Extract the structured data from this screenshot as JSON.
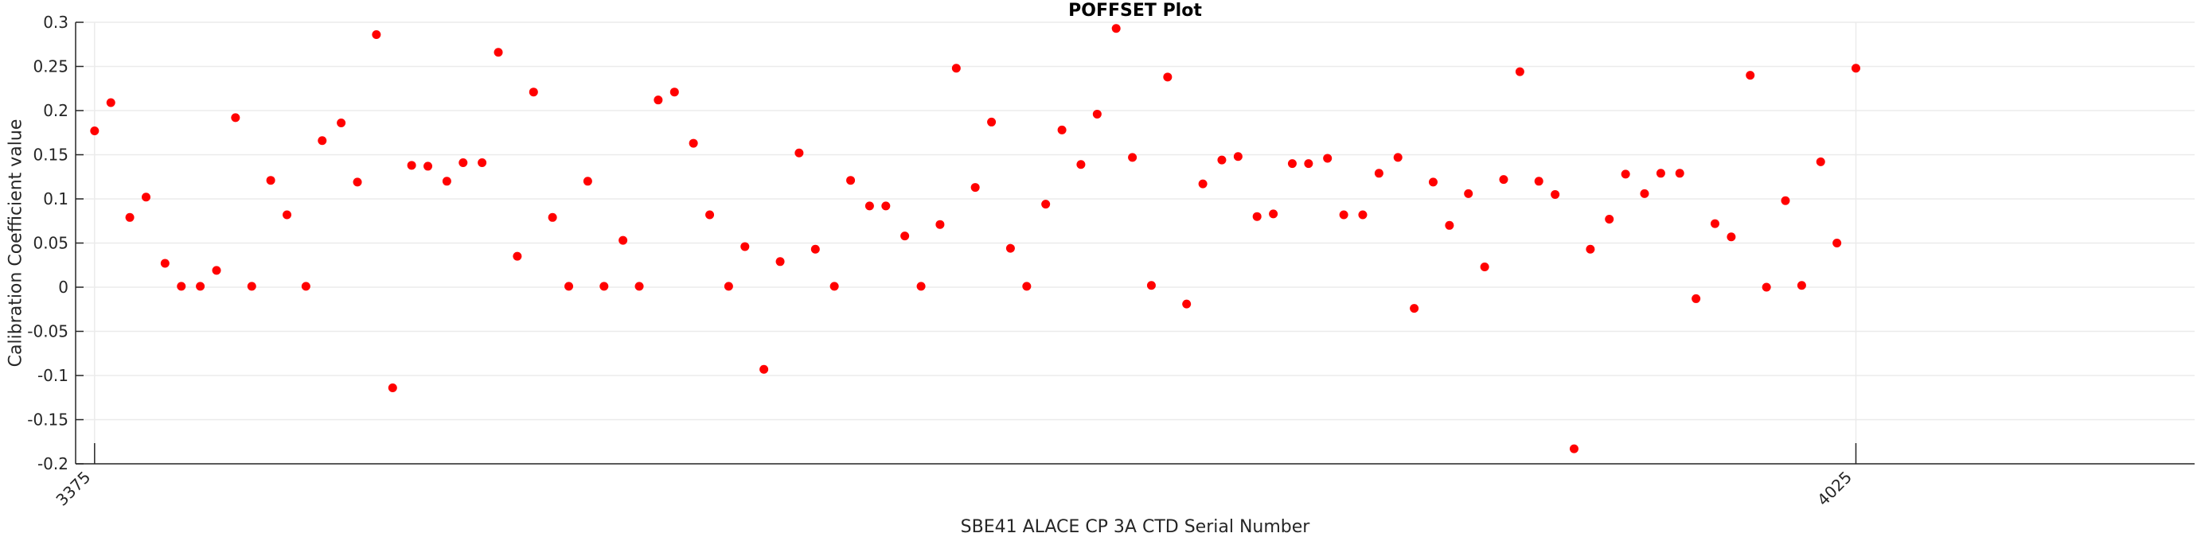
{
  "chart_data": {
    "type": "scatter",
    "title": "POFFSET Plot",
    "xlabel": "SBE41 ALACE CP 3A CTD Serial Number",
    "ylabel": "Calibration Coefficient value",
    "xlim": [
      3368,
      4150
    ],
    "ylim": [
      -0.2,
      0.3
    ],
    "x_ticks": [
      3375,
      4025
    ],
    "x_tick_labels": [
      "3375",
      "4025"
    ],
    "y_ticks": [
      -0.2,
      -0.15,
      -0.1,
      -0.05,
      0,
      0.05,
      0.1,
      0.15,
      0.2,
      0.25,
      0.3
    ],
    "y_tick_labels": [
      "-0.2",
      "-0.15",
      "-0.1",
      "-0.05",
      "0",
      "0.05",
      "0.1",
      "0.15",
      "0.2",
      "0.25",
      "0.3"
    ],
    "grid": true,
    "marker_color": "#ff0000",
    "x": [
      3375,
      3381,
      3388,
      3394,
      3401,
      3407,
      3414,
      3420,
      3427,
      3433,
      3440,
      3446,
      3453,
      3459,
      3466,
      3472,
      3479,
      3485,
      3492,
      3498,
      3505,
      3511,
      3518,
      3524,
      3531,
      3537,
      3544,
      3550,
      3557,
      3563,
      3570,
      3576,
      3583,
      3589,
      3596,
      3602,
      3609,
      3615,
      3622,
      3628,
      3635,
      3641,
      3648,
      3654,
      3661,
      3667,
      3674,
      3680,
      3687,
      3693,
      3700,
      3706,
      3713,
      3719,
      3726,
      3732,
      3739,
      3745,
      3752,
      3758,
      3765,
      3771,
      3778,
      3784,
      3791,
      3797,
      3804,
      3810,
      3817,
      3823,
      3830,
      3836,
      3843,
      3849,
      3856,
      3862,
      3869,
      3875,
      3882,
      3888,
      3895,
      3901,
      3908,
      3914,
      3921,
      3927,
      3934,
      3940,
      3947,
      3953,
      3960,
      3966,
      3973,
      3979,
      3986,
      3992,
      3999,
      4005,
      4012,
      4018,
      4025
    ],
    "y": [
      0.177,
      0.209,
      0.079,
      0.102,
      0.027,
      0.001,
      0.001,
      0.019,
      0.192,
      0.001,
      0.121,
      0.082,
      0.001,
      0.166,
      0.186,
      0.119,
      0.286,
      -0.114,
      0.138,
      0.137,
      0.12,
      0.141,
      0.141,
      0.266,
      0.035,
      0.221,
      0.079,
      0.001,
      0.12,
      0.001,
      0.053,
      0.001,
      0.212,
      0.221,
      0.163,
      0.082,
      0.001,
      0.046,
      -0.093,
      0.029,
      0.152,
      0.043,
      0.001,
      0.121,
      0.092,
      0.092,
      0.058,
      0.001,
      0.071,
      0.248,
      0.113,
      0.187,
      0.044,
      0.001,
      0.094,
      0.178,
      0.139,
      0.196,
      0.293,
      0.147,
      0.002,
      0.238,
      -0.019,
      0.117,
      0.144,
      0.148,
      0.08,
      0.083,
      0.14,
      0.14,
      0.146,
      0.082,
      0.082,
      0.129,
      0.147,
      -0.024,
      0.119,
      0.07,
      0.106,
      0.023,
      0.122,
      0.244,
      0.12,
      0.105,
      -0.183,
      0.043,
      0.077,
      0.128,
      0.106,
      0.129,
      0.129,
      -0.013,
      0.072,
      0.057,
      0.24,
      0.0,
      0.098,
      0.002,
      0.142,
      0.05,
      0.248
    ]
  }
}
